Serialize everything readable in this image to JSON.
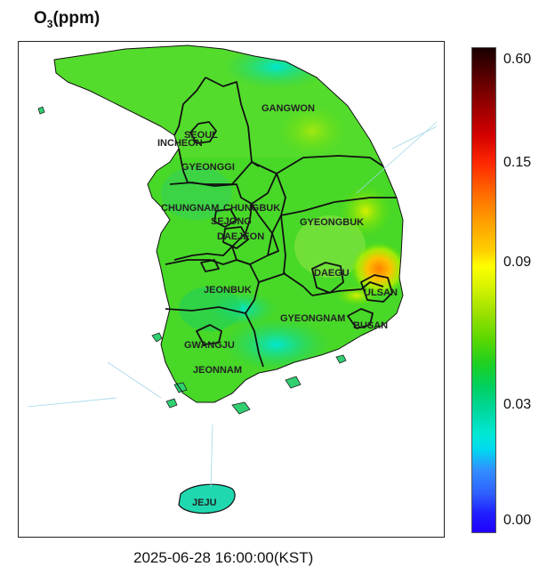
{
  "title": {
    "main": "O",
    "sub": "3",
    "unit": "(ppm)"
  },
  "timestamp": "2025-06-28 16:00:00(KST)",
  "colorbar": {
    "ticks": [
      "0.60",
      "0.15",
      "0.09",
      "0.03",
      "0.00"
    ],
    "colors": {
      "high": "#1a0000",
      "mid_high": "#ff2a00",
      "mid": "#ffff00",
      "low_mid": "#20d020",
      "low": "#00e8d8",
      "min": "#2000ff"
    }
  },
  "regions": [
    {
      "id": "gangwon",
      "label": "GANGWON"
    },
    {
      "id": "seoul",
      "label": "SEOUL"
    },
    {
      "id": "incheon",
      "label": "INCHEON"
    },
    {
      "id": "gyeonggi",
      "label": "GYEONGGI"
    },
    {
      "id": "chungnam",
      "label": "CHUNGNAM"
    },
    {
      "id": "chungbuk",
      "label": "CHUNGBUK"
    },
    {
      "id": "sejong",
      "label": "SEJONG"
    },
    {
      "id": "daejeon",
      "label": "DAEJEON"
    },
    {
      "id": "gyeongbuk",
      "label": "GYEONGBUK"
    },
    {
      "id": "daegu",
      "label": "DAEGU"
    },
    {
      "id": "ulsan",
      "label": "ULSAN"
    },
    {
      "id": "jeonbuk",
      "label": "JEONBUK"
    },
    {
      "id": "gyeongnam",
      "label": "GYEONGNAM"
    },
    {
      "id": "busan",
      "label": "BUSAN"
    },
    {
      "id": "gwangju",
      "label": "GWANGJU"
    },
    {
      "id": "jeonnam",
      "label": "JEONNAM"
    },
    {
      "id": "jeju",
      "label": "JEJU"
    }
  ]
}
